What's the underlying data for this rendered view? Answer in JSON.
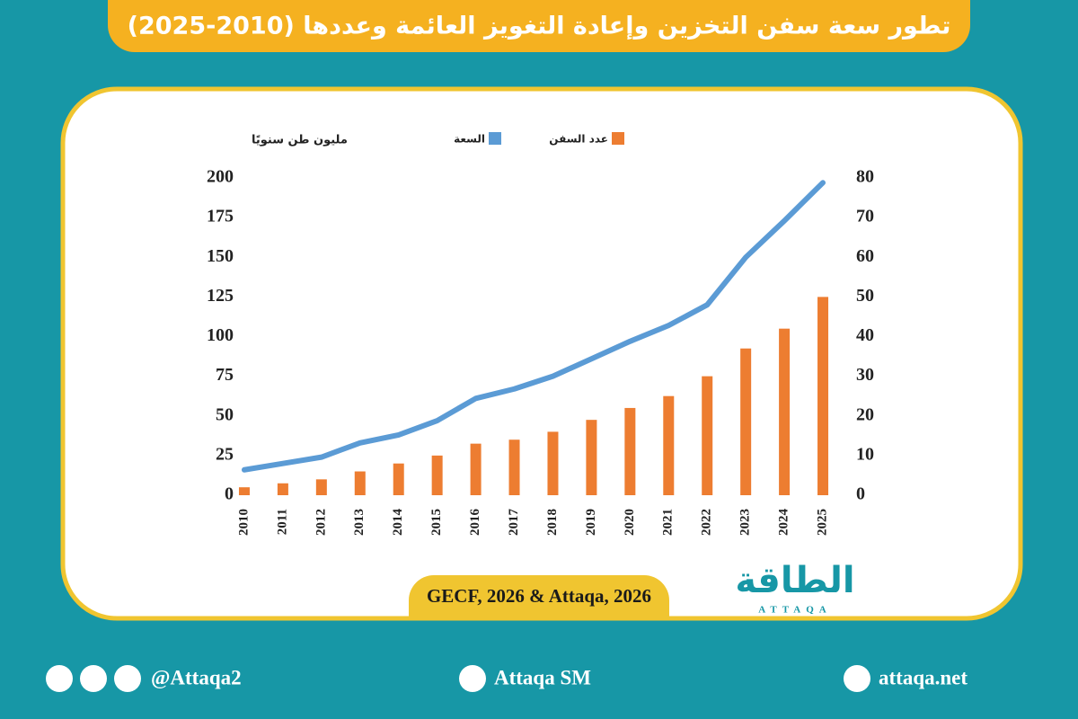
{
  "chart_data": {
    "type": "bar-line",
    "title": "تطور سعة سفن التخزين وإعادة التغويز العائمة وعددها (2010-2025)",
    "ylabel": "مليون طن سنويًا",
    "categories": [
      "2010",
      "2011",
      "2012",
      "2013",
      "2014",
      "2015",
      "2016",
      "2017",
      "2018",
      "2019",
      "2020",
      "2021",
      "2022",
      "2023",
      "2024",
      "2025"
    ],
    "series": [
      {
        "name": "عدد السفن",
        "type": "bar",
        "axis": "y2",
        "color": "#ed7d31",
        "values": [
          2,
          3,
          4,
          6,
          8,
          10,
          13,
          14,
          16,
          19,
          22,
          25,
          30,
          37,
          42,
          50
        ]
      },
      {
        "name": "السعة",
        "type": "line",
        "color": "#5b9bd5",
        "values": [
          16,
          20,
          24,
          33,
          38,
          47,
          61,
          67,
          75,
          86,
          97,
          107,
          120,
          150,
          173,
          197
        ]
      }
    ],
    "ylim": [
      0,
      200
    ],
    "yticks": [
      0,
      25,
      50,
      75,
      100,
      125,
      150,
      175,
      200
    ],
    "y2lim": [
      0,
      80
    ],
    "y2ticks": [
      0,
      10,
      20,
      30,
      40,
      50,
      60,
      70,
      80
    ],
    "grid": false,
    "source": "GECF, 2026 & Attaqa, 2026"
  },
  "logo": {
    "arabic": "الطاقة",
    "latin": "ATTAQA"
  },
  "footer": {
    "social": "@Attaqa2",
    "youtube": "Attaqa SM",
    "website": "attaqa.net"
  }
}
